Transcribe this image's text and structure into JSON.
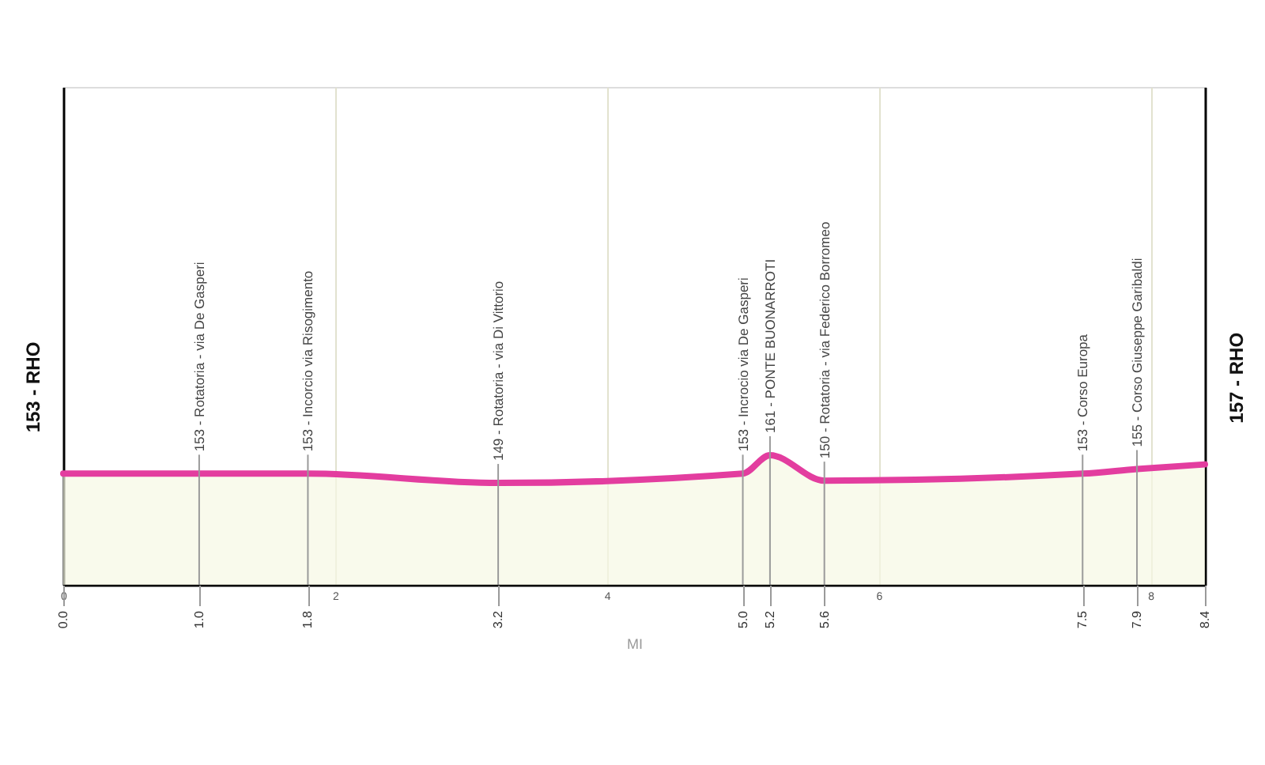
{
  "chart_data": {
    "type": "area",
    "xlabel": "MI",
    "x": [
      0.0,
      1.0,
      1.8,
      3.2,
      5.0,
      5.2,
      5.6,
      7.5,
      7.9,
      8.4
    ],
    "values": [
      153,
      153,
      153,
      149,
      153,
      161,
      150,
      153,
      155,
      157
    ],
    "value_labels": [
      "153 - RHO",
      "153 - Rotatoria - via De Gasperi",
      "153 - Incorcio via Risogimento",
      "149 - Rotatoria - via Di Vittorio",
      "153 - Incrocio via De Gasperi",
      "161 - PONTE BUONARROTI",
      "150 - Rotatoria - via Federico Borromeo",
      "153 - Corso Europa",
      "155 - Corso Giuseppe Garibaldi",
      "157 - RHO"
    ],
    "color": "#e33d9f",
    "xlim": [
      0,
      8.4
    ],
    "xticks": [
      0,
      2,
      4,
      6,
      8
    ],
    "x2lim": [
      0,
      8.4
    ],
    "x2ticks": [
      {
        "value": 0.0,
        "label": "0.0"
      },
      {
        "value": 1.0,
        "label": "1.0"
      },
      {
        "value": 1.8,
        "label": "1.8"
      },
      {
        "value": 3.2,
        "label": "3.2"
      },
      {
        "value": 5.0,
        "label": "5.0"
      },
      {
        "value": 5.2,
        "label": "5.2"
      },
      {
        "value": 5.6,
        "label": "5.6"
      },
      {
        "value": 7.5,
        "label": "7.5"
      },
      {
        "value": 7.9,
        "label": "7.9"
      },
      {
        "value": 8.4,
        "label": "8.4"
      }
    ],
    "ylim": [
      105,
      320
    ],
    "tick_labels": "x",
    "grid": "x"
  }
}
